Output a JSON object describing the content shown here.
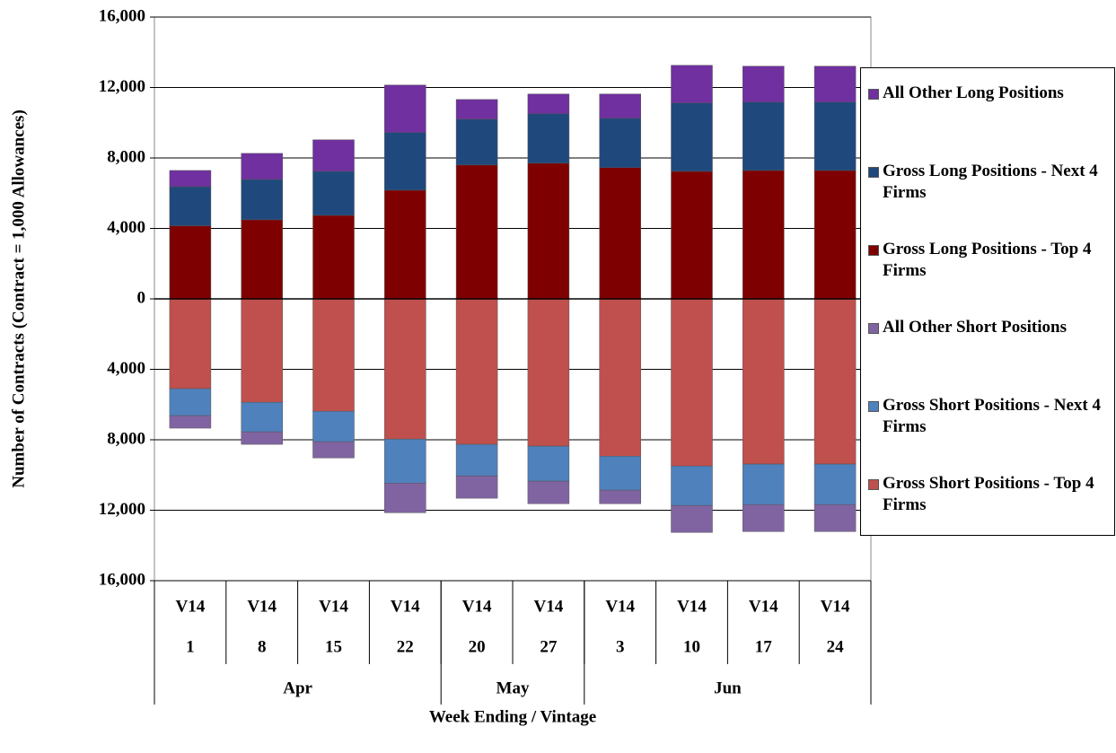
{
  "chart_data": {
    "type": "bar",
    "stacked": true,
    "x_label": "Week Ending / Vintage",
    "y_label": "Number of Contracts (Contract = 1,000 Allowances)",
    "vintages": [
      "V14",
      "V14",
      "V14",
      "V14",
      "V14",
      "V14",
      "V14",
      "V14",
      "V14",
      "V14"
    ],
    "categories": [
      "1",
      "8",
      "15",
      "22",
      "20",
      "27",
      "3",
      "10",
      "17",
      "24"
    ],
    "groups": [
      {
        "label": "Apr",
        "count": 4
      },
      {
        "label": "May",
        "count": 2
      },
      {
        "label": "Jun",
        "count": 4
      }
    ],
    "ylim": [
      -16000,
      16000
    ],
    "yticks": [
      {
        "value": 16000,
        "label": "16,000"
      },
      {
        "value": 12000,
        "label": "12,000"
      },
      {
        "value": 8000,
        "label": "8,000"
      },
      {
        "value": 4000,
        "label": "4,000"
      },
      0,
      {
        "value": -4000,
        "label": "4,000"
      },
      {
        "value": -8000,
        "label": "8,000"
      },
      {
        "value": -12000,
        "label": "12,000"
      },
      {
        "value": -16000,
        "label": "16,000"
      }
    ],
    "grid": true,
    "legend_position": "right",
    "series": [
      {
        "name": "All Other Long Positions",
        "color": "#7030a0",
        "values": [
          920,
          1480,
          1790,
          2700,
          1120,
          1120,
          1380,
          2140,
          2040,
          2040
        ]
      },
      {
        "name": "Gross Long Positions - Next 4 Firms",
        "color": "#1f497d",
        "values": [
          2220,
          2290,
          2500,
          3270,
          2600,
          2810,
          2800,
          3880,
          3880,
          3880
        ]
      },
      {
        "name": "Gross Long Positions - Top 4 Firms",
        "color": "#7f0000",
        "values": [
          4150,
          4490,
          4740,
          6170,
          7600,
          7700,
          7450,
          7240,
          7290,
          7290
        ]
      },
      {
        "name": "All Other Short Positions",
        "color": "#8064a2",
        "values": [
          -710,
          -710,
          -920,
          -1680,
          -1270,
          -1280,
          -770,
          -1530,
          -1530,
          -1530
        ]
      },
      {
        "name": "Gross Short Positions - Next 4 Firms",
        "color": "#4f81bd",
        "values": [
          -1530,
          -1680,
          -1730,
          -2500,
          -1790,
          -1990,
          -1930,
          -2240,
          -2300,
          -2300
        ]
      },
      {
        "name": "Gross Short Positions - Top 4 Firms",
        "color": "#c0504d",
        "values": [
          -5100,
          -5870,
          -6380,
          -7960,
          -8260,
          -8360,
          -8930,
          -9490,
          -9380,
          -9380
        ]
      }
    ]
  }
}
